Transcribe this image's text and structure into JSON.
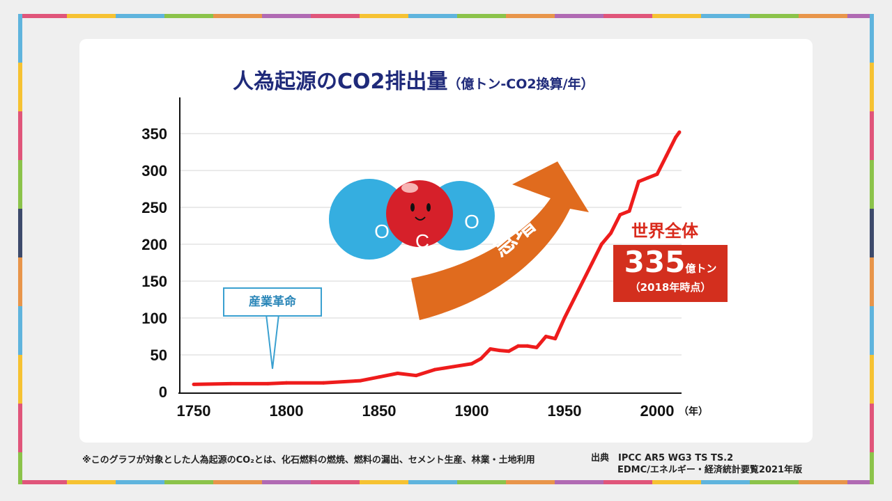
{
  "chart_data": {
    "type": "line",
    "title": "人為起源のCO2排出量",
    "subtitle": "（億トン-CO2換算/年）",
    "xlabel": "（年）",
    "ylabel": "",
    "xlim": [
      1750,
      2018
    ],
    "ylim": [
      0,
      350
    ],
    "xticks": [
      1750,
      1800,
      1850,
      1900,
      1950,
      2000
    ],
    "yticks": [
      0,
      50,
      100,
      150,
      200,
      250,
      300,
      350
    ],
    "grid": true,
    "series": [
      {
        "name": "世界全体",
        "color": "#ee1c1c",
        "x": [
          1750,
          1770,
          1790,
          1800,
          1820,
          1840,
          1850,
          1860,
          1870,
          1880,
          1890,
          1900,
          1905,
          1910,
          1915,
          1920,
          1925,
          1930,
          1935,
          1940,
          1945,
          1950,
          1955,
          1960,
          1965,
          1970,
          1975,
          1980,
          1985,
          1990,
          1995,
          2000,
          2005,
          2010,
          2012
        ],
        "y": [
          10,
          11,
          11,
          12,
          12,
          15,
          20,
          25,
          22,
          30,
          34,
          38,
          45,
          58,
          56,
          55,
          62,
          62,
          60,
          75,
          72,
          100,
          125,
          150,
          175,
          200,
          215,
          240,
          245,
          285,
          290,
          295,
          320,
          345,
          352
        ]
      }
    ],
    "annotations": {
      "industrial_revolution": "産業革命",
      "rapid_increase": "急増",
      "total_label": "世界全体",
      "total_value": "335",
      "total_unit": "億トン",
      "total_note": "（2018年時点）",
      "molecule_o": "O",
      "molecule_c": "C"
    }
  },
  "footnote": "※このグラフが対象とした人為起源のCO₂とは、化石燃料の燃焼、燃料の漏出、セメント生産、林業・土地利用",
  "source_line1": "出典　IPCC AR5 WG3 TS TS.2",
  "source_line2": "EDMC/エネルギー・経済統計要覧2021年版"
}
